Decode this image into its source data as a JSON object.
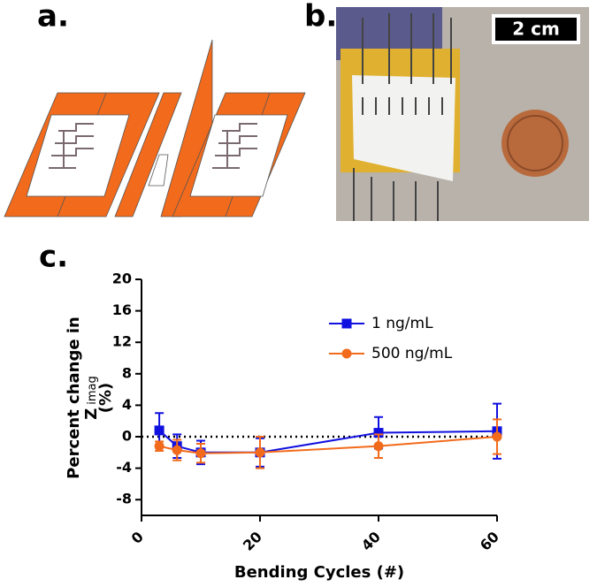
{
  "panels": {
    "a": "a.",
    "b": "b.",
    "c": "c."
  },
  "photo": {
    "scale_bar": "2 cm"
  },
  "chart_data": {
    "type": "line",
    "x_label": "Bending Cycles  (#)",
    "y_label": {
      "line1": "Percent change in",
      "symbol": "Z",
      "subscript": "imag",
      "unit": "(%)"
    },
    "x": [
      3,
      6,
      10,
      20,
      40,
      60
    ],
    "series": [
      {
        "name": "1 ng/mL",
        "color": "#1010e0",
        "marker": "square",
        "values": [
          0.8,
          -1.2,
          -2.0,
          -2.0,
          0.5,
          0.7
        ],
        "errors": [
          2.2,
          1.5,
          1.5,
          1.8,
          2.0,
          3.5
        ]
      },
      {
        "name": "500 ng/mL",
        "color": "#f26a1b",
        "marker": "circle",
        "values": [
          -1.2,
          -1.7,
          -2.1,
          -2.0,
          -1.2,
          0.0
        ],
        "errors": [
          0.6,
          1.3,
          1.2,
          2.0,
          1.5,
          2.2
        ]
      }
    ],
    "xlim": [
      0,
      60
    ],
    "xticks": [
      0,
      20,
      40,
      60
    ],
    "ylim": [
      -10,
      20
    ],
    "yticks": [
      -8,
      -4,
      0,
      4,
      8,
      12,
      16,
      20
    ],
    "reference_line": 0,
    "legend": "upper right"
  }
}
